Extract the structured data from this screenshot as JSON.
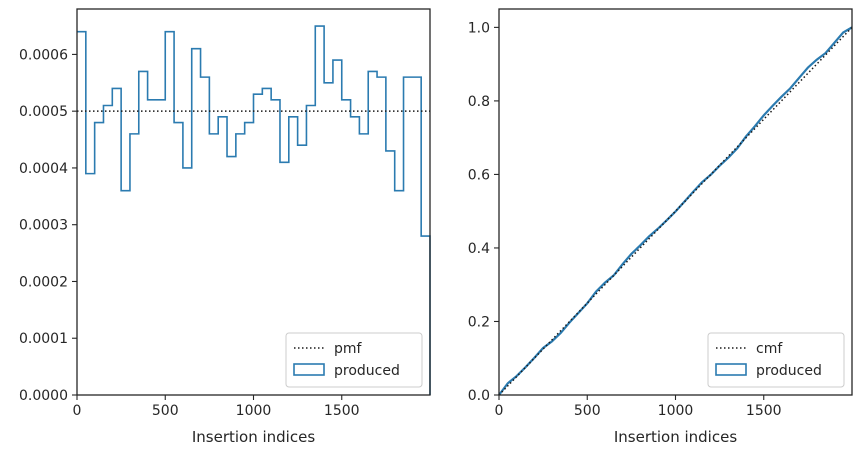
{
  "colors": {
    "hist": "#2b7bb0",
    "reference": "#1a1a1a",
    "frame": "#262626",
    "legend_border": "#cccccc"
  },
  "chart_data": [
    {
      "type": "step",
      "xlabel": "Insertion indices",
      "ylabel": "",
      "xlim": [
        0,
        2000
      ],
      "ylim": [
        0,
        0.00068
      ],
      "x_ticks": [
        0,
        500,
        1000,
        1500
      ],
      "y_ticks": [
        0,
        0.0001,
        0.0002,
        0.0003,
        0.0004,
        0.0005,
        0.0006
      ],
      "x_tick_labels": [
        "0",
        "500",
        "1000",
        "1500"
      ],
      "y_tick_labels": [
        "0.0000",
        "0.0001",
        "0.0002",
        "0.0003",
        "0.0004",
        "0.0005",
        "0.0006"
      ],
      "legend_position": "lower right",
      "grid": false,
      "series": [
        {
          "name": "produced",
          "style": "histogram-step",
          "bin_edges": [
            0,
            50,
            100,
            150,
            200,
            250,
            300,
            350,
            400,
            450,
            500,
            550,
            600,
            650,
            700,
            750,
            800,
            850,
            900,
            950,
            1000,
            1050,
            1100,
            1150,
            1200,
            1250,
            1300,
            1350,
            1400,
            1450,
            1500,
            1550,
            1600,
            1650,
            1700,
            1750,
            1800,
            1850,
            1900,
            1950,
            2000
          ],
          "values": [
            0.00064,
            0.00039,
            0.00048,
            0.00051,
            0.00054,
            0.00036,
            0.00046,
            0.00057,
            0.00052,
            0.00052,
            0.00064,
            0.00048,
            0.0004,
            0.00061,
            0.00056,
            0.00046,
            0.00049,
            0.00042,
            0.00046,
            0.00048,
            0.00053,
            0.00054,
            0.00052,
            0.00041,
            0.00049,
            0.00044,
            0.00051,
            0.00065,
            0.00055,
            0.00059,
            0.00052,
            0.00049,
            0.00046,
            0.00057,
            0.00056,
            0.00043,
            0.00036,
            0.00056,
            0.00056,
            0.00028
          ]
        },
        {
          "name": "pmf",
          "style": "dotted",
          "x": [
            0,
            2000
          ],
          "y": [
            0.0005,
            0.0005
          ]
        }
      ]
    },
    {
      "type": "step",
      "xlabel": "Insertion indices",
      "ylabel": "",
      "xlim": [
        0,
        2000
      ],
      "ylim": [
        0,
        1.05
      ],
      "x_ticks": [
        0,
        500,
        1000,
        1500
      ],
      "y_ticks": [
        0,
        0.2,
        0.4,
        0.6,
        0.8,
        1.0
      ],
      "x_tick_labels": [
        "0",
        "500",
        "1000",
        "1500"
      ],
      "y_tick_labels": [
        "0.0",
        "0.2",
        "0.4",
        "0.6",
        "0.8",
        "1.0"
      ],
      "legend_position": "lower right",
      "grid": false,
      "series": [
        {
          "name": "produced",
          "style": "cumulative-histogram-step"
        },
        {
          "name": "cmf",
          "style": "dotted",
          "x": [
            0,
            2000
          ],
          "y": [
            0,
            1
          ]
        }
      ]
    }
  ]
}
